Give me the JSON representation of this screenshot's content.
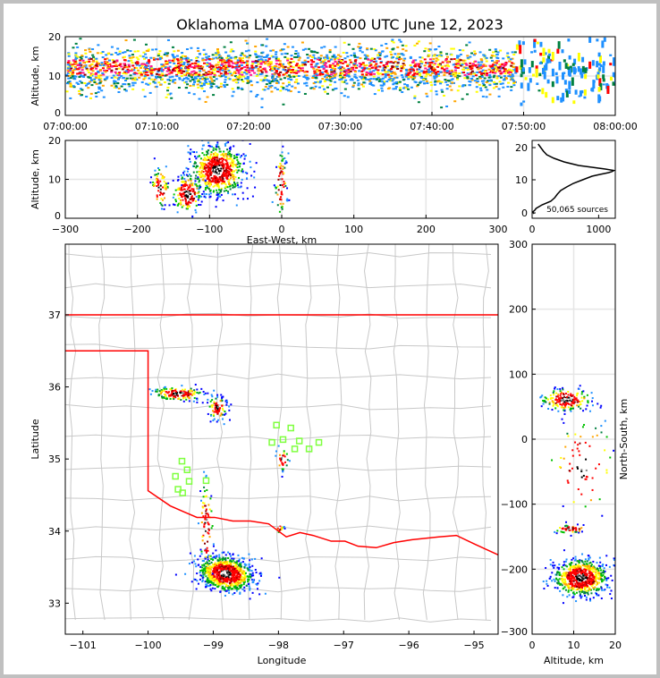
{
  "title": "Oklahoma LMA 0700-0800 UTC June 12, 2023",
  "chart_data": [
    {
      "id": "time_height",
      "type": "scatter",
      "ylabel": "Altitude, km",
      "xlabel": "",
      "xlim_minutes": [
        0,
        60
      ],
      "ylim": [
        0,
        20
      ],
      "xticks": [
        0,
        10,
        20,
        30,
        40,
        50,
        60
      ],
      "xtick_labels": [
        "07:00:00",
        "07:10:00",
        "07:20:00",
        "07:30:00",
        "07:40:00",
        "07:50:00",
        "08:00:00"
      ],
      "yticks": [
        0,
        10,
        20
      ],
      "ytick_labels": [
        "0",
        "10",
        "20"
      ],
      "grid": true,
      "sources": {
        "active_minutes": [
          0,
          49
        ],
        "sparse_minutes": [
          49,
          60
        ],
        "mean_altitude_km": 11.5,
        "altitude_sd_km": 3
      }
    },
    {
      "id": "ew_height",
      "type": "scatter",
      "xlabel": "East-West, km",
      "ylabel": "Altitude, km",
      "xlim": [
        -300,
        300
      ],
      "ylim": [
        0,
        20
      ],
      "xticks": [
        -300,
        -200,
        -100,
        0,
        100,
        200,
        300
      ],
      "xtick_labels": [
        "−300",
        "−200",
        "−100",
        "0",
        "100",
        "200",
        "300"
      ],
      "yticks": [
        0,
        10,
        20
      ],
      "ytick_labels": [
        "0",
        "10",
        "20"
      ],
      "grid": true,
      "clusters": [
        {
          "cx": -90,
          "cy": 12.5,
          "sx": 18,
          "sy": 3.2,
          "n": 700
        },
        {
          "cx": -132,
          "cy": 6.5,
          "sx": 10,
          "sy": 2.5,
          "n": 180
        },
        {
          "cx": -170,
          "cy": 8,
          "sx": 6,
          "sy": 2.5,
          "n": 70
        },
        {
          "cx": -2,
          "cy": 9,
          "sx": 4,
          "sy": 4,
          "n": 70
        }
      ]
    },
    {
      "id": "altitude_histogram",
      "type": "line",
      "xlabel": "",
      "ylabel": "",
      "xlim": [
        0,
        1250
      ],
      "ylim": [
        0,
        20
      ],
      "xticks": [
        0,
        1000
      ],
      "xtick_labels": [
        "0",
        "1000"
      ],
      "yticks": [
        0,
        10,
        20
      ],
      "ytick_labels": [
        "0",
        "10",
        "20"
      ],
      "annotation": "50,065 sources",
      "profile": {
        "altitude_km": [
          0.5,
          1,
          1.5,
          2,
          3,
          4,
          5,
          6,
          7,
          8,
          9,
          10,
          11,
          11.5,
          12,
          12.3,
          12.6,
          13,
          13.5,
          14,
          15,
          16,
          17,
          18,
          19,
          20
        ],
        "count": [
          30,
          10,
          40,
          60,
          150,
          280,
          340,
          380,
          430,
          520,
          620,
          760,
          900,
          1020,
          1150,
          1200,
          1230,
          1100,
          900,
          700,
          480,
          330,
          220,
          170,
          130,
          90
        ]
      }
    },
    {
      "id": "plan_view",
      "type": "scatter",
      "xlabel": "Longitude",
      "ylabel": "Latitude",
      "xlim": [
        -101.27,
        -94.63
      ],
      "ylim": [
        32.57,
        37.98
      ],
      "xticks": [
        -101,
        -100,
        -99,
        -98,
        -97,
        -96,
        -95
      ],
      "xtick_labels": [
        "−101",
        "−100",
        "−99",
        "−98",
        "−97",
        "−96",
        "−95"
      ],
      "yticks": [
        33,
        34,
        35,
        36,
        37
      ],
      "ytick_labels": [
        "33",
        "34",
        "35",
        "36",
        "37"
      ],
      "clusters": [
        {
          "cx": -98.82,
          "cy": 33.42,
          "sx": 0.22,
          "sy": 0.12,
          "rot": -25,
          "n": 900
        },
        {
          "cx": -99.55,
          "cy": 35.92,
          "sx": 0.2,
          "sy": 0.05,
          "rot": -8,
          "n": 160
        },
        {
          "cx": -98.95,
          "cy": 35.72,
          "sx": 0.07,
          "sy": 0.08,
          "rot": 0,
          "n": 90
        },
        {
          "cx": -99.12,
          "cy": 34.05,
          "sx": 0.05,
          "sy": 0.35,
          "rot": 0,
          "n": 80
        },
        {
          "cx": -97.95,
          "cy": 35.0,
          "sx": 0.05,
          "sy": 0.08,
          "rot": 0,
          "n": 30
        },
        {
          "cx": -98.0,
          "cy": 34.05,
          "sx": 0.03,
          "sy": 0.03,
          "rot": 0,
          "n": 20
        }
      ],
      "stations": [
        [
          -98.03,
          35.47
        ],
        [
          -97.81,
          35.43
        ],
        [
          -98.1,
          35.23
        ],
        [
          -97.93,
          35.27
        ],
        [
          -97.68,
          35.25
        ],
        [
          -97.75,
          35.14
        ],
        [
          -97.53,
          35.14
        ],
        [
          -97.38,
          35.23
        ],
        [
          -99.48,
          34.97
        ],
        [
          -99.4,
          34.85
        ],
        [
          -99.58,
          34.76
        ],
        [
          -99.37,
          34.69
        ],
        [
          -99.11,
          34.7
        ],
        [
          -99.54,
          34.58
        ],
        [
          -99.47,
          34.53
        ]
      ],
      "station_color": "#7fff3f",
      "state_border_color": "#ff0000",
      "state_border": [
        [
          -101.3,
          37.0
        ],
        [
          -94.63,
          37.0
        ]
      ],
      "state_border_south": [
        [
          -101.3,
          36.5
        ],
        [
          -100.0,
          36.5
        ],
        [
          -100.0,
          34.56
        ],
        [
          -99.87,
          34.48
        ],
        [
          -99.66,
          34.35
        ],
        [
          -99.46,
          34.27
        ],
        [
          -99.25,
          34.19
        ],
        [
          -98.98,
          34.19
        ],
        [
          -98.7,
          34.14
        ],
        [
          -98.43,
          34.14
        ],
        [
          -98.15,
          34.1
        ],
        [
          -97.88,
          33.92
        ],
        [
          -97.67,
          33.98
        ],
        [
          -97.47,
          33.94
        ],
        [
          -97.19,
          33.86
        ],
        [
          -96.98,
          33.86
        ],
        [
          -96.78,
          33.79
        ],
        [
          -96.5,
          33.77
        ],
        [
          -96.23,
          33.84
        ],
        [
          -95.95,
          33.88
        ],
        [
          -95.54,
          33.92
        ],
        [
          -95.27,
          33.94
        ],
        [
          -94.99,
          33.82
        ],
        [
          -94.63,
          33.67
        ]
      ]
    },
    {
      "id": "ns_height",
      "type": "scatter",
      "xlabel": "Altitude, km",
      "ylabel": "North-South, km",
      "xlim": [
        0,
        20
      ],
      "ylim": [
        -300,
        300
      ],
      "xticks": [
        0,
        10,
        20
      ],
      "xtick_labels": [
        "0",
        "10",
        "20"
      ],
      "yticks": [
        -300,
        -200,
        -100,
        0,
        100,
        200,
        300
      ],
      "ytick_labels": [
        "−300",
        "−200",
        "−100",
        "0",
        "100",
        "200",
        "300"
      ],
      "clusters": [
        {
          "cx": 11.5,
          "cy": -212,
          "sx": 3.2,
          "sy": 14,
          "n": 700
        },
        {
          "cx": 8,
          "cy": 62,
          "sx": 3,
          "sy": 9,
          "n": 200
        },
        {
          "cx": 9,
          "cy": -137,
          "sx": 2,
          "sy": 3,
          "n": 50
        },
        {
          "cx": 12,
          "cy": -40,
          "sx": 4,
          "sy": 40,
          "n": 70
        }
      ]
    }
  ],
  "palette": [
    "#0000ff",
    "#1e90ff",
    "#008040",
    "#00c000",
    "#ffff00",
    "#ffa500",
    "#ff0000",
    "#ff1493",
    "#8b0000",
    "#000000",
    "#ffffff",
    "#808080"
  ]
}
